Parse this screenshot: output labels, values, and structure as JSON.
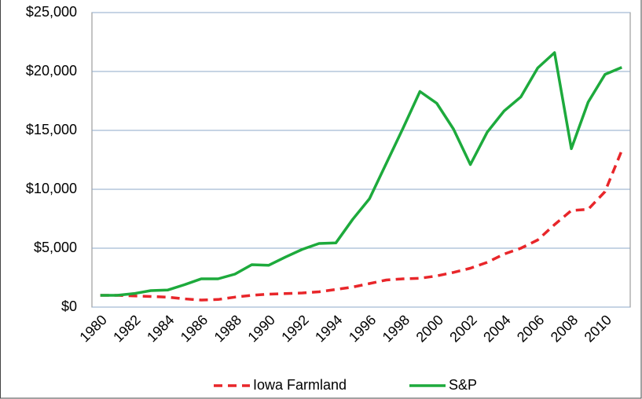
{
  "chart_data": {
    "type": "line",
    "categories": [
      "1980",
      null,
      "1982",
      null,
      "1984",
      null,
      "1986",
      null,
      "1988",
      null,
      "1990",
      null,
      "1992",
      null,
      "1994",
      null,
      "1996",
      null,
      "1998",
      null,
      "2000",
      null,
      "2002",
      null,
      "2004",
      null,
      "2006",
      null,
      "2008",
      null,
      "2010",
      null
    ],
    "series": [
      {
        "name": "Iowa Farmland",
        "color": "#e8262a",
        "dashed": true,
        "values": [
          1000,
          1000,
          950,
          900,
          850,
          700,
          600,
          650,
          850,
          1000,
          1100,
          1150,
          1200,
          1300,
          1500,
          1700,
          2000,
          2300,
          2400,
          2450,
          2650,
          2950,
          3300,
          3800,
          4500,
          5000,
          5700,
          7000,
          8200,
          8300,
          9800,
          13300
        ]
      },
      {
        "name": "S&P",
        "color": "#1daa3c",
        "dashed": false,
        "values": [
          1000,
          1000,
          1150,
          1400,
          1450,
          1900,
          2400,
          2400,
          2800,
          3600,
          3550,
          4250,
          4900,
          5400,
          5450,
          7450,
          9200,
          12200,
          15200,
          18300,
          17300,
          15100,
          12100,
          14850,
          16650,
          17850,
          20300,
          21600,
          13450,
          17400,
          19750,
          20350
        ]
      }
    ],
    "ylim": [
      0,
      25000
    ],
    "yticks": [
      {
        "value": 0,
        "label": "$0"
      },
      {
        "value": 5000,
        "label": "$5,000"
      },
      {
        "value": 10000,
        "label": "$10,000"
      },
      {
        "value": 15000,
        "label": "$15,000"
      },
      {
        "value": 20000,
        "label": "$20,000"
      },
      {
        "value": 25000,
        "label": "$25,000"
      }
    ],
    "grid": true,
    "legend": "bottom"
  }
}
